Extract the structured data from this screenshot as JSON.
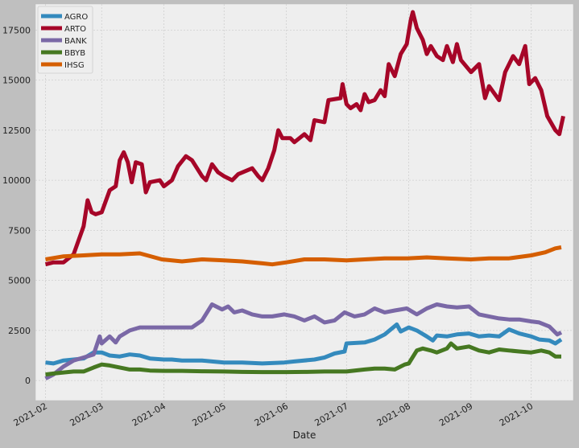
{
  "chart_data": {
    "type": "line",
    "title": "",
    "xlabel": "Date",
    "ylabel": "",
    "ylim": [
      -1000,
      18800
    ],
    "yticks": [
      0,
      2500,
      5000,
      7500,
      10000,
      12500,
      15000,
      17500
    ],
    "xlim": [
      "2021-01-27",
      "2021-10-22"
    ],
    "xticks": [
      "2021-02",
      "2021-03",
      "2021-04",
      "2021-05",
      "2021-06",
      "2021-07",
      "2021-08",
      "2021-09",
      "2021-10"
    ],
    "grid": true,
    "legend": "top-left",
    "series": [
      {
        "name": "AGRO",
        "color": "#348abd",
        "points": [
          [
            "2021-02-01",
            900
          ],
          [
            "2021-02-05",
            850
          ],
          [
            "2021-02-10",
            1000
          ],
          [
            "2021-02-15",
            1050
          ],
          [
            "2021-02-20",
            1100
          ],
          [
            "2021-02-25",
            1400
          ],
          [
            "2021-03-01",
            1400
          ],
          [
            "2021-03-05",
            1250
          ],
          [
            "2021-03-10",
            1200
          ],
          [
            "2021-03-15",
            1300
          ],
          [
            "2021-03-20",
            1250
          ],
          [
            "2021-03-25",
            1100
          ],
          [
            "2021-04-01",
            1050
          ],
          [
            "2021-04-05",
            1050
          ],
          [
            "2021-04-10",
            1000
          ],
          [
            "2021-04-20",
            1000
          ],
          [
            "2021-04-25",
            950
          ],
          [
            "2021-05-01",
            900
          ],
          [
            "2021-05-10",
            900
          ],
          [
            "2021-05-20",
            850
          ],
          [
            "2021-05-31",
            900
          ],
          [
            "2021-06-05",
            950
          ],
          [
            "2021-06-15",
            1050
          ],
          [
            "2021-06-20",
            1150
          ],
          [
            "2021-06-25",
            1350
          ],
          [
            "2021-06-30",
            1450
          ],
          [
            "2021-07-01",
            1850
          ],
          [
            "2021-07-10",
            1900
          ],
          [
            "2021-07-15",
            2050
          ],
          [
            "2021-07-20",
            2300
          ],
          [
            "2021-07-26",
            2800
          ],
          [
            "2021-07-28",
            2450
          ],
          [
            "2021-08-01",
            2650
          ],
          [
            "2021-08-05",
            2500
          ],
          [
            "2021-08-10",
            2200
          ],
          [
            "2021-08-13",
            2000
          ],
          [
            "2021-08-15",
            2250
          ],
          [
            "2021-08-20",
            2200
          ],
          [
            "2021-08-25",
            2300
          ],
          [
            "2021-08-31",
            2350
          ],
          [
            "2021-09-05",
            2200
          ],
          [
            "2021-09-10",
            2250
          ],
          [
            "2021-09-15",
            2200
          ],
          [
            "2021-09-20",
            2550
          ],
          [
            "2021-09-25",
            2350
          ],
          [
            "2021-10-01",
            2200
          ],
          [
            "2021-10-05",
            2050
          ],
          [
            "2021-10-10",
            2000
          ],
          [
            "2021-10-13",
            1850
          ],
          [
            "2021-10-16",
            2050
          ]
        ]
      },
      {
        "name": "ARTO",
        "color": "#a60628",
        "points": [
          [
            "2021-02-01",
            5800
          ],
          [
            "2021-02-05",
            5900
          ],
          [
            "2021-02-10",
            5900
          ],
          [
            "2021-02-15",
            6300
          ],
          [
            "2021-02-20",
            7700
          ],
          [
            "2021-02-22",
            9000
          ],
          [
            "2021-02-24",
            8400
          ],
          [
            "2021-02-26",
            8300
          ],
          [
            "2021-03-01",
            8400
          ],
          [
            "2021-03-05",
            9500
          ],
          [
            "2021-03-08",
            9700
          ],
          [
            "2021-03-10",
            11000
          ],
          [
            "2021-03-12",
            11400
          ],
          [
            "2021-03-14",
            10900
          ],
          [
            "2021-03-16",
            9900
          ],
          [
            "2021-03-18",
            10900
          ],
          [
            "2021-03-21",
            10800
          ],
          [
            "2021-03-23",
            9400
          ],
          [
            "2021-03-25",
            9900
          ],
          [
            "2021-03-30",
            10000
          ],
          [
            "2021-04-01",
            9700
          ],
          [
            "2021-04-05",
            10000
          ],
          [
            "2021-04-08",
            10700
          ],
          [
            "2021-04-12",
            11200
          ],
          [
            "2021-04-15",
            11000
          ],
          [
            "2021-04-20",
            10200
          ],
          [
            "2021-04-22",
            10000
          ],
          [
            "2021-04-25",
            10800
          ],
          [
            "2021-04-28",
            10400
          ],
          [
            "2021-05-01",
            10200
          ],
          [
            "2021-05-05",
            10000
          ],
          [
            "2021-05-08",
            10300
          ],
          [
            "2021-05-15",
            10600
          ],
          [
            "2021-05-18",
            10200
          ],
          [
            "2021-05-20",
            10000
          ],
          [
            "2021-05-23",
            10600
          ],
          [
            "2021-05-26",
            11500
          ],
          [
            "2021-05-28",
            12500
          ],
          [
            "2021-05-30",
            12100
          ],
          [
            "2021-06-03",
            12100
          ],
          [
            "2021-06-05",
            11900
          ],
          [
            "2021-06-10",
            12300
          ],
          [
            "2021-06-13",
            12000
          ],
          [
            "2021-06-15",
            13000
          ],
          [
            "2021-06-20",
            12900
          ],
          [
            "2021-06-22",
            14000
          ],
          [
            "2021-06-28",
            14100
          ],
          [
            "2021-06-29",
            14800
          ],
          [
            "2021-07-01",
            13800
          ],
          [
            "2021-07-03",
            13600
          ],
          [
            "2021-07-06",
            13800
          ],
          [
            "2021-07-08",
            13500
          ],
          [
            "2021-07-10",
            14300
          ],
          [
            "2021-07-12",
            13900
          ],
          [
            "2021-07-15",
            14000
          ],
          [
            "2021-07-18",
            14500
          ],
          [
            "2021-07-20",
            14200
          ],
          [
            "2021-07-22",
            15800
          ],
          [
            "2021-07-25",
            15200
          ],
          [
            "2021-07-28",
            16300
          ],
          [
            "2021-07-31",
            16800
          ],
          [
            "2021-08-02",
            18000
          ],
          [
            "2021-08-03",
            18400
          ],
          [
            "2021-08-05",
            17600
          ],
          [
            "2021-08-08",
            17000
          ],
          [
            "2021-08-10",
            16300
          ],
          [
            "2021-08-12",
            16700
          ],
          [
            "2021-08-15",
            16200
          ],
          [
            "2021-08-18",
            16000
          ],
          [
            "2021-08-20",
            16700
          ],
          [
            "2021-08-23",
            15900
          ],
          [
            "2021-08-25",
            16800
          ],
          [
            "2021-08-27",
            16000
          ],
          [
            "2021-09-01",
            15400
          ],
          [
            "2021-09-05",
            15800
          ],
          [
            "2021-09-08",
            14100
          ],
          [
            "2021-09-10",
            14700
          ],
          [
            "2021-09-15",
            14000
          ],
          [
            "2021-09-18",
            15400
          ],
          [
            "2021-09-22",
            16200
          ],
          [
            "2021-09-25",
            15800
          ],
          [
            "2021-09-28",
            16700
          ],
          [
            "2021-09-30",
            14800
          ],
          [
            "2021-10-03",
            15100
          ],
          [
            "2021-10-06",
            14500
          ],
          [
            "2021-10-09",
            13200
          ],
          [
            "2021-10-13",
            12500
          ],
          [
            "2021-10-15",
            12300
          ],
          [
            "2021-10-17",
            13200
          ]
        ]
      },
      {
        "name": "BANK",
        "color": "#7a68a6",
        "points": [
          [
            "2021-02-01",
            100
          ],
          [
            "2021-02-05",
            300
          ],
          [
            "2021-02-10",
            700
          ],
          [
            "2021-02-15",
            1000
          ],
          [
            "2021-02-20",
            1150
          ],
          [
            "2021-02-25",
            1300
          ],
          [
            "2021-02-28",
            2200
          ],
          [
            "2021-03-01",
            1850
          ],
          [
            "2021-03-05",
            2200
          ],
          [
            "2021-03-08",
            1900
          ],
          [
            "2021-03-10",
            2200
          ],
          [
            "2021-03-15",
            2500
          ],
          [
            "2021-03-20",
            2650
          ],
          [
            "2021-03-31",
            2650
          ],
          [
            "2021-04-10",
            2650
          ],
          [
            "2021-04-15",
            2650
          ],
          [
            "2021-04-20",
            3000
          ],
          [
            "2021-04-25",
            3800
          ],
          [
            "2021-04-30",
            3550
          ],
          [
            "2021-05-03",
            3700
          ],
          [
            "2021-05-06",
            3400
          ],
          [
            "2021-05-10",
            3500
          ],
          [
            "2021-05-15",
            3300
          ],
          [
            "2021-05-20",
            3200
          ],
          [
            "2021-05-25",
            3200
          ],
          [
            "2021-05-31",
            3300
          ],
          [
            "2021-06-05",
            3200
          ],
          [
            "2021-06-10",
            3000
          ],
          [
            "2021-06-15",
            3200
          ],
          [
            "2021-06-20",
            2900
          ],
          [
            "2021-06-25",
            3000
          ],
          [
            "2021-06-30",
            3400
          ],
          [
            "2021-07-05",
            3200
          ],
          [
            "2021-07-10",
            3300
          ],
          [
            "2021-07-15",
            3600
          ],
          [
            "2021-07-20",
            3400
          ],
          [
            "2021-07-25",
            3500
          ],
          [
            "2021-07-31",
            3600
          ],
          [
            "2021-08-05",
            3300
          ],
          [
            "2021-08-10",
            3600
          ],
          [
            "2021-08-15",
            3800
          ],
          [
            "2021-08-20",
            3700
          ],
          [
            "2021-08-25",
            3650
          ],
          [
            "2021-08-31",
            3700
          ],
          [
            "2021-09-05",
            3300
          ],
          [
            "2021-09-10",
            3200
          ],
          [
            "2021-09-15",
            3100
          ],
          [
            "2021-09-20",
            3050
          ],
          [
            "2021-09-25",
            3050
          ],
          [
            "2021-10-01",
            2950
          ],
          [
            "2021-10-05",
            2900
          ],
          [
            "2021-10-10",
            2700
          ],
          [
            "2021-10-14",
            2300
          ],
          [
            "2021-10-16",
            2400
          ]
        ]
      },
      {
        "name": "BBYB",
        "color": "#467821",
        "points": [
          [
            "2021-02-01",
            300
          ],
          [
            "2021-02-05",
            350
          ],
          [
            "2021-02-10",
            400
          ],
          [
            "2021-02-15",
            450
          ],
          [
            "2021-02-20",
            450
          ],
          [
            "2021-02-25",
            650
          ],
          [
            "2021-03-01",
            800
          ],
          [
            "2021-03-05",
            750
          ],
          [
            "2021-03-10",
            650
          ],
          [
            "2021-03-15",
            550
          ],
          [
            "2021-03-20",
            550
          ],
          [
            "2021-03-25",
            500
          ],
          [
            "2021-04-01",
            480
          ],
          [
            "2021-04-10",
            480
          ],
          [
            "2021-04-20",
            460
          ],
          [
            "2021-05-01",
            450
          ],
          [
            "2021-05-10",
            430
          ],
          [
            "2021-05-20",
            420
          ],
          [
            "2021-06-01",
            420
          ],
          [
            "2021-06-10",
            430
          ],
          [
            "2021-06-20",
            450
          ],
          [
            "2021-07-01",
            450
          ],
          [
            "2021-07-10",
            550
          ],
          [
            "2021-07-15",
            600
          ],
          [
            "2021-07-20",
            600
          ],
          [
            "2021-07-25",
            550
          ],
          [
            "2021-07-30",
            800
          ],
          [
            "2021-08-01",
            850
          ],
          [
            "2021-08-05",
            1500
          ],
          [
            "2021-08-08",
            1600
          ],
          [
            "2021-08-12",
            1500
          ],
          [
            "2021-08-15",
            1400
          ],
          [
            "2021-08-20",
            1600
          ],
          [
            "2021-08-22",
            1850
          ],
          [
            "2021-08-25",
            1600
          ],
          [
            "2021-08-31",
            1700
          ],
          [
            "2021-09-05",
            1500
          ],
          [
            "2021-09-10",
            1400
          ],
          [
            "2021-09-15",
            1550
          ],
          [
            "2021-09-20",
            1500
          ],
          [
            "2021-09-25",
            1450
          ],
          [
            "2021-10-01",
            1400
          ],
          [
            "2021-10-06",
            1500
          ],
          [
            "2021-10-10",
            1400
          ],
          [
            "2021-10-13",
            1200
          ],
          [
            "2021-10-16",
            1200
          ]
        ]
      },
      {
        "name": "IHSG",
        "color": "#d55e00",
        "points": [
          [
            "2021-02-01",
            6050
          ],
          [
            "2021-02-10",
            6200
          ],
          [
            "2021-02-20",
            6250
          ],
          [
            "2021-03-01",
            6300
          ],
          [
            "2021-03-10",
            6300
          ],
          [
            "2021-03-20",
            6350
          ],
          [
            "2021-03-31",
            6050
          ],
          [
            "2021-04-10",
            5950
          ],
          [
            "2021-04-20",
            6050
          ],
          [
            "2021-05-01",
            6000
          ],
          [
            "2021-05-10",
            5950
          ],
          [
            "2021-05-20",
            5850
          ],
          [
            "2021-05-25",
            5800
          ],
          [
            "2021-06-01",
            5900
          ],
          [
            "2021-06-10",
            6050
          ],
          [
            "2021-06-20",
            6050
          ],
          [
            "2021-07-01",
            6000
          ],
          [
            "2021-07-10",
            6050
          ],
          [
            "2021-07-20",
            6100
          ],
          [
            "2021-08-01",
            6100
          ],
          [
            "2021-08-10",
            6150
          ],
          [
            "2021-08-20",
            6100
          ],
          [
            "2021-09-01",
            6050
          ],
          [
            "2021-09-10",
            6100
          ],
          [
            "2021-09-20",
            6100
          ],
          [
            "2021-10-01",
            6250
          ],
          [
            "2021-10-08",
            6400
          ],
          [
            "2021-10-13",
            6600
          ],
          [
            "2021-10-16",
            6650
          ]
        ]
      }
    ]
  }
}
